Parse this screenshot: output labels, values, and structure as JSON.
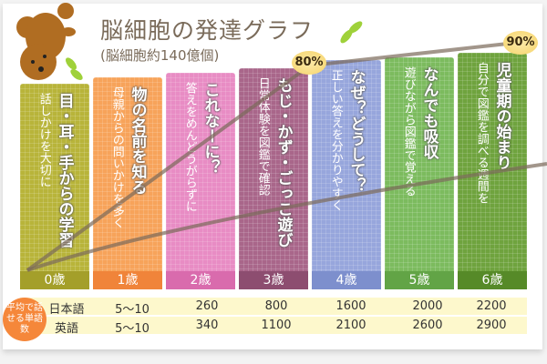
{
  "title": "脳細胞の発達グラフ",
  "subtitle": "(脳細胞約140億個)",
  "milestones": {
    "m80": "80%",
    "m90": "90%"
  },
  "columns": [
    {
      "age": "0歳",
      "main": "目・耳・手からの学習",
      "sub": "話しかけを大切に",
      "color": "#b8b43a",
      "ageColor": "#a49f2a"
    },
    {
      "age": "1歳",
      "main": "物の名前を知る",
      "sub": "母親からの問いかけを多く",
      "color": "#f7a35a",
      "ageColor": "#f0843a"
    },
    {
      "age": "2歳",
      "main": "これなーに？",
      "sub": "答えをめんどうがらずに",
      "color": "#e88cc4",
      "ageColor": "#d96bad"
    },
    {
      "age": "3歳",
      "main": "もじ・かず・ごっこ遊び",
      "sub": "日常体験を図鑑で確認",
      "color": "#a9668a",
      "ageColor": "#8d4d70"
    },
    {
      "age": "4歳",
      "main": "なぜ？どうして？",
      "sub": "正しい答えを分かりやすく",
      "color": "#97a6dc",
      "ageColor": "#7d8fcd"
    },
    {
      "age": "5歳",
      "main": "なんでも吸収",
      "sub": "遊びながら図鑑で覚える",
      "color": "#7cbb5e",
      "ageColor": "#62a446"
    },
    {
      "age": "6歳",
      "main": "児童期の始まり",
      "sub": "自分で図鑑を調べる週間を",
      "color": "#6fa33e",
      "ageColor": "#568a28"
    }
  ],
  "table": {
    "badge": "平均で話せる単語数",
    "rows": [
      {
        "label": "日本語",
        "values": [
          "5〜10",
          "260",
          "800",
          "1600",
          "2000",
          "2200"
        ]
      },
      {
        "label": "英語",
        "values": [
          "5〜10",
          "340",
          "1100",
          "2100",
          "2600",
          "2900"
        ]
      }
    ]
  }
}
